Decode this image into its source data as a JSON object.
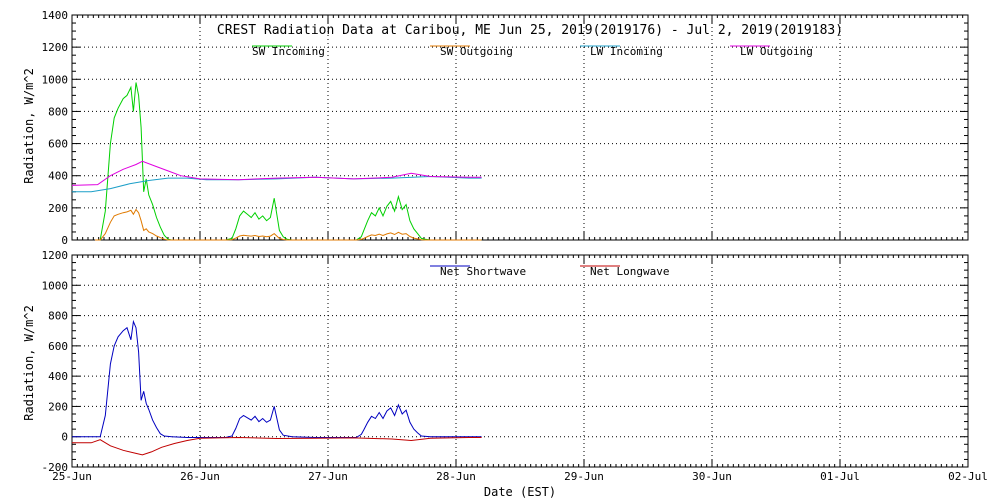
{
  "chart_data": [
    {
      "type": "line",
      "title": "CREST Radiation Data at Caribou, ME   Jun 25, 2019(2019176) - Jul  2, 2019(2019183)",
      "xlabel": "",
      "ylabel": "Radiation, W/m^2",
      "ylim": [
        0,
        1400
      ],
      "yticks": [
        "0",
        "200",
        "400",
        "600",
        "800",
        "1000",
        "1200",
        "1400"
      ],
      "grid": true,
      "legend_position": "top",
      "series": [
        {
          "name": "SW Incoming",
          "color": "#00d000",
          "x": [
            0.18,
            0.22,
            0.26,
            0.3,
            0.33,
            0.36,
            0.4,
            0.43,
            0.46,
            0.48,
            0.5,
            0.52,
            0.54,
            0.56,
            0.58,
            0.6,
            0.63,
            0.66,
            0.69,
            0.72,
            0.75,
            0.78,
            1.2,
            1.25,
            1.28,
            1.31,
            1.34,
            1.37,
            1.4,
            1.43,
            1.46,
            1.49,
            1.52,
            1.55,
            1.58,
            1.62,
            1.65,
            1.68,
            1.72,
            1.76,
            1.8,
            2.22,
            2.26,
            2.28,
            2.31,
            2.34,
            2.37,
            2.4,
            2.43,
            2.46,
            2.49,
            2.52,
            2.55,
            2.58,
            2.61,
            2.64,
            2.67,
            2.7,
            2.73,
            2.76,
            2.8,
            2.85,
            3.2
          ],
          "y": [
            0,
            0,
            180,
            600,
            760,
            820,
            880,
            900,
            950,
            800,
            980,
            900,
            700,
            300,
            380,
            280,
            220,
            140,
            80,
            30,
            5,
            0,
            0,
            10,
            70,
            150,
            180,
            160,
            140,
            170,
            130,
            150,
            120,
            140,
            260,
            60,
            20,
            5,
            0,
            0,
            0,
            0,
            20,
            60,
            120,
            170,
            150,
            200,
            150,
            210,
            240,
            180,
            270,
            190,
            220,
            120,
            70,
            40,
            10,
            5,
            0,
            0,
            0
          ]
        },
        {
          "name": "SW Outgoing",
          "color": "#e07a00",
          "x": [
            0.18,
            0.22,
            0.26,
            0.3,
            0.33,
            0.36,
            0.4,
            0.43,
            0.46,
            0.48,
            0.5,
            0.52,
            0.54,
            0.56,
            0.58,
            0.6,
            0.63,
            0.66,
            0.69,
            0.72,
            0.75,
            0.78,
            1.2,
            1.25,
            1.28,
            1.31,
            1.34,
            1.37,
            1.4,
            1.43,
            1.46,
            1.49,
            1.52,
            1.55,
            1.58,
            1.62,
            1.65,
            1.68,
            1.72,
            1.76,
            1.8,
            2.22,
            2.26,
            2.28,
            2.31,
            2.34,
            2.37,
            2.4,
            2.43,
            2.46,
            2.49,
            2.52,
            2.55,
            2.58,
            2.61,
            2.64,
            2.67,
            2.7,
            2.73,
            2.76,
            2.8,
            2.85,
            3.2
          ],
          "y": [
            0,
            0,
            40,
            110,
            150,
            160,
            170,
            175,
            185,
            160,
            190,
            170,
            120,
            60,
            70,
            50,
            40,
            25,
            15,
            5,
            0,
            0,
            0,
            2,
            12,
            25,
            30,
            27,
            24,
            28,
            22,
            25,
            20,
            24,
            40,
            10,
            3,
            0,
            0,
            0,
            0,
            0,
            4,
            10,
            22,
            32,
            28,
            36,
            28,
            38,
            44,
            34,
            48,
            36,
            40,
            22,
            12,
            7,
            2,
            0,
            0,
            0,
            0
          ]
        },
        {
          "name": "LW Incoming",
          "color": "#1c9fc8",
          "x": [
            0,
            0.15,
            0.3,
            0.45,
            0.6,
            0.75,
            0.9,
            1.05,
            1.3,
            1.6,
            1.9,
            2.2,
            2.5,
            2.8,
            3.1,
            3.2
          ],
          "y": [
            300,
            300,
            320,
            350,
            370,
            385,
            385,
            375,
            375,
            380,
            390,
            380,
            385,
            395,
            385,
            385
          ]
        },
        {
          "name": "LW Outgoing",
          "color": "#e000e0",
          "x": [
            0,
            0.2,
            0.3,
            0.4,
            0.5,
            0.55,
            0.65,
            0.75,
            0.85,
            1.0,
            1.3,
            1.6,
            1.9,
            2.2,
            2.5,
            2.65,
            2.8,
            3.1,
            3.2
          ],
          "y": [
            340,
            345,
            400,
            440,
            470,
            490,
            460,
            430,
            400,
            380,
            375,
            385,
            390,
            380,
            390,
            415,
            395,
            390,
            390
          ]
        }
      ]
    },
    {
      "type": "line",
      "xlabel": "Date (EST)",
      "ylabel": "Radiation, W/m^2",
      "ylim": [
        -200,
        1200
      ],
      "yticks": [
        "-200",
        "0",
        "200",
        "400",
        "600",
        "800",
        "1000",
        "1200"
      ],
      "xticks": [
        "25-Jun",
        "26-Jun",
        "27-Jun",
        "28-Jun",
        "29-Jun",
        "30-Jun",
        "01-Jul",
        "02-Jul"
      ],
      "grid": true,
      "legend_position": "top",
      "series": [
        {
          "name": "Net Shortwave",
          "color": "#0000c0",
          "x": [
            0,
            0.15,
            0.22,
            0.26,
            0.3,
            0.33,
            0.36,
            0.4,
            0.43,
            0.46,
            0.48,
            0.5,
            0.52,
            0.54,
            0.56,
            0.58,
            0.6,
            0.63,
            0.66,
            0.69,
            0.72,
            0.78,
            0.9,
            1.2,
            1.25,
            1.28,
            1.31,
            1.34,
            1.37,
            1.4,
            1.43,
            1.46,
            1.49,
            1.52,
            1.55,
            1.58,
            1.62,
            1.65,
            1.72,
            1.9,
            2.22,
            2.26,
            2.28,
            2.31,
            2.34,
            2.37,
            2.4,
            2.43,
            2.46,
            2.49,
            2.52,
            2.55,
            2.58,
            2.61,
            2.64,
            2.67,
            2.7,
            2.73,
            2.8,
            3.2
          ],
          "y": [
            0,
            0,
            0,
            140,
            480,
            600,
            660,
            700,
            720,
            640,
            760,
            720,
            560,
            240,
            300,
            220,
            180,
            110,
            60,
            20,
            5,
            0,
            -5,
            -5,
            5,
            55,
            120,
            140,
            125,
            110,
            135,
            100,
            120,
            95,
            110,
            200,
            45,
            10,
            0,
            -5,
            -5,
            15,
            45,
            95,
            135,
            120,
            160,
            120,
            170,
            190,
            140,
            210,
            150,
            175,
            95,
            50,
            25,
            5,
            0,
            0
          ]
        },
        {
          "name": "Net Longwave",
          "color": "#c00000",
          "x": [
            0,
            0.15,
            0.22,
            0.3,
            0.4,
            0.5,
            0.55,
            0.62,
            0.7,
            0.8,
            0.9,
            1.0,
            1.3,
            1.6,
            1.9,
            2.2,
            2.5,
            2.65,
            2.8,
            3.1,
            3.2
          ],
          "y": [
            -40,
            -40,
            -20,
            -60,
            -90,
            -110,
            -120,
            -100,
            -70,
            -45,
            -25,
            -10,
            -5,
            -12,
            -10,
            -8,
            -15,
            -25,
            -10,
            -5,
            -5
          ]
        }
      ]
    }
  ]
}
